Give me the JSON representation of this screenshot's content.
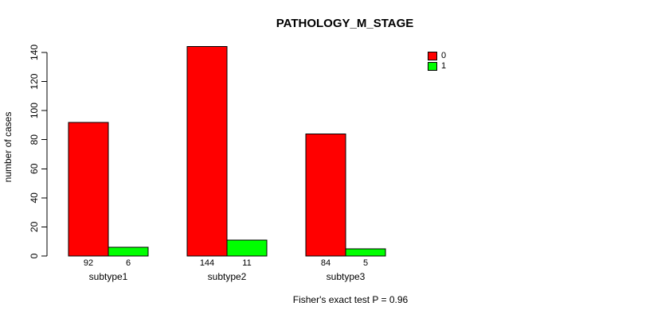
{
  "title": "PATHOLOGY_M_STAGE",
  "y_axis_label": "number of cases",
  "footer_note": "Fisher's exact test P = 0.96",
  "legend": {
    "entries": [
      {
        "label": "0",
        "color": "#FF0000"
      },
      {
        "label": "1",
        "color": "#00FF00"
      }
    ]
  },
  "chart_data": {
    "type": "bar",
    "title": "PATHOLOGY_M_STAGE",
    "categories": [
      "subtype1",
      "subtype2",
      "subtype3"
    ],
    "series": [
      {
        "name": "0",
        "color": "#FF0000",
        "values": [
          92,
          144,
          84
        ]
      },
      {
        "name": "1",
        "color": "#00FF00",
        "values": [
          6,
          11,
          5
        ]
      }
    ],
    "ylabel": "number of cases",
    "ylim": [
      0,
      140
    ],
    "yticks": [
      0,
      20,
      40,
      60,
      80,
      100,
      120,
      140
    ],
    "value_labels_shown": true,
    "annotation": "Fisher's exact test P = 0.96",
    "legend_position": "right-of-plot",
    "grid": false,
    "bar_border_color": "#000000",
    "axis_color": "#000000",
    "background_color": "#FFFFFF"
  }
}
